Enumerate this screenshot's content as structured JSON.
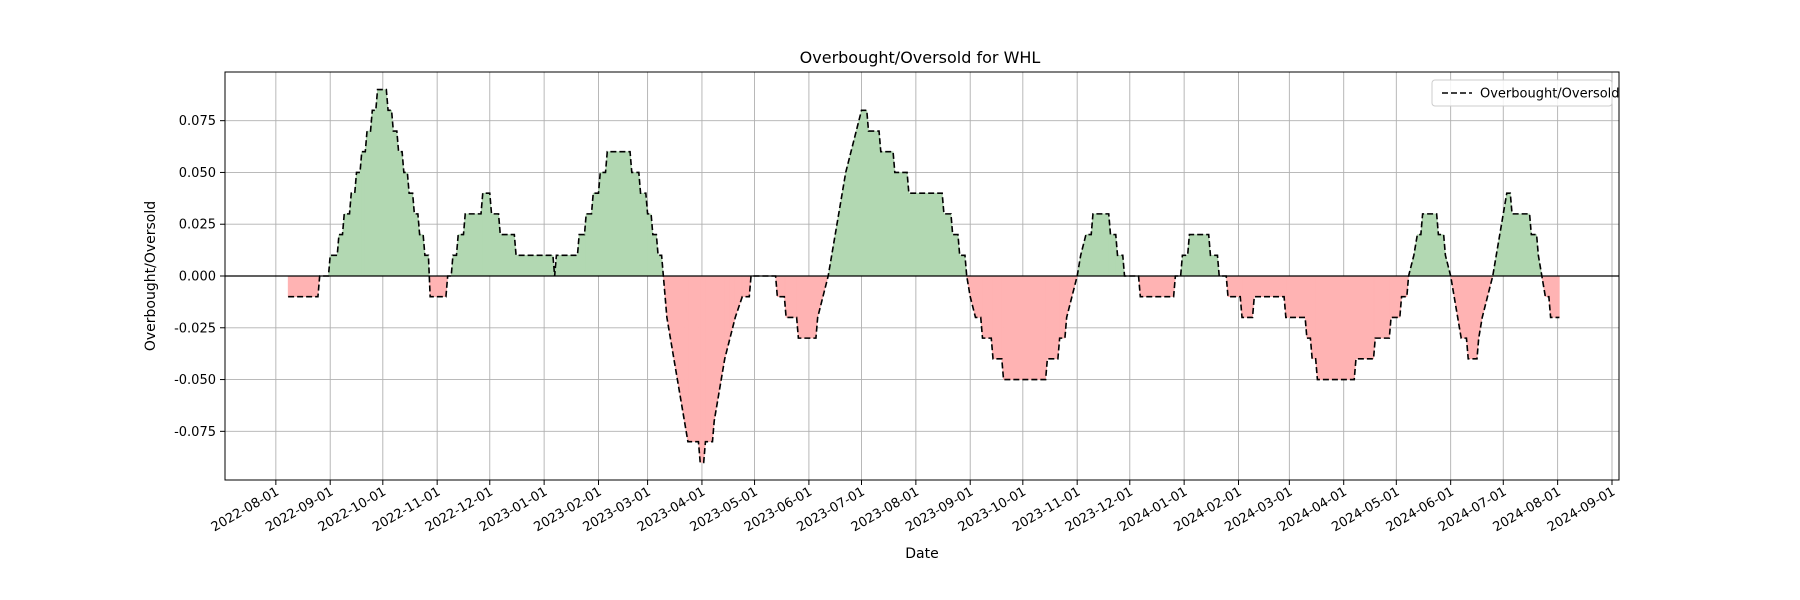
{
  "chart_data": {
    "type": "area",
    "title": "Overbought/Oversold for WHL",
    "xlabel": "Date",
    "ylabel": "Overbought/Oversold",
    "x_ticks": [
      "2022-08-01",
      "2022-09-01",
      "2022-10-01",
      "2022-11-01",
      "2022-12-01",
      "2023-01-01",
      "2023-02-01",
      "2023-03-01",
      "2023-04-01",
      "2023-05-01",
      "2023-06-01",
      "2023-07-01",
      "2023-08-01",
      "2023-09-01",
      "2023-10-01",
      "2023-11-01",
      "2023-12-01",
      "2024-01-01",
      "2024-02-01",
      "2024-03-01",
      "2024-04-01",
      "2024-05-01",
      "2024-06-01",
      "2024-07-01",
      "2024-08-01",
      "2024-09-01"
    ],
    "y_ticks": [
      "0.075",
      "0.050",
      "0.025",
      "0.000",
      "-0.025",
      "-0.050",
      "-0.075"
    ],
    "y_tick_values": [
      0.075,
      0.05,
      0.025,
      0,
      -0.025,
      -0.05,
      -0.075
    ],
    "xlim": [
      "2022-07-03",
      "2024-09-05"
    ],
    "ylim": [
      -0.0985,
      0.0985
    ],
    "grid": true,
    "legend_position": "top-right",
    "positive_color": "#b2d8b2",
    "negative_color": "#ffb3b3",
    "line_color": "#000000",
    "zero_line_color": "#000000",
    "series": [
      {
        "name": "Overbought/Oversold",
        "style": "dashed",
        "points": [
          [
            "2022-08-08",
            -0.01
          ],
          [
            "2022-08-25",
            -0.01
          ],
          [
            "2022-08-26",
            0
          ],
          [
            "2022-08-31",
            0
          ],
          [
            "2022-09-01",
            0.01
          ],
          [
            "2022-09-05",
            0.01
          ],
          [
            "2022-09-06",
            0.02
          ],
          [
            "2022-09-08",
            0.02
          ],
          [
            "2022-09-09",
            0.03
          ],
          [
            "2022-09-12",
            0.03
          ],
          [
            "2022-09-13",
            0.04
          ],
          [
            "2022-09-15",
            0.04
          ],
          [
            "2022-09-16",
            0.05
          ],
          [
            "2022-09-18",
            0.05
          ],
          [
            "2022-09-19",
            0.06
          ],
          [
            "2022-09-21",
            0.06
          ],
          [
            "2022-09-22",
            0.07
          ],
          [
            "2022-09-24",
            0.07
          ],
          [
            "2022-09-25",
            0.08
          ],
          [
            "2022-09-27",
            0.08
          ],
          [
            "2022-09-28",
            0.09
          ],
          [
            "2022-10-03",
            0.09
          ],
          [
            "2022-10-04",
            0.08
          ],
          [
            "2022-10-06",
            0.08
          ],
          [
            "2022-10-07",
            0.07
          ],
          [
            "2022-10-09",
            0.07
          ],
          [
            "2022-10-10",
            0.06
          ],
          [
            "2022-10-12",
            0.06
          ],
          [
            "2022-10-13",
            0.05
          ],
          [
            "2022-10-15",
            0.05
          ],
          [
            "2022-10-16",
            0.04
          ],
          [
            "2022-10-18",
            0.04
          ],
          [
            "2022-10-19",
            0.03
          ],
          [
            "2022-10-21",
            0.03
          ],
          [
            "2022-10-22",
            0.02
          ],
          [
            "2022-10-24",
            0.02
          ],
          [
            "2022-10-25",
            0.01
          ],
          [
            "2022-10-27",
            0.01
          ],
          [
            "2022-10-28",
            -0.01
          ],
          [
            "2022-11-06",
            -0.01
          ],
          [
            "2022-11-07",
            0
          ],
          [
            "2022-11-09",
            0
          ],
          [
            "2022-11-10",
            0.01
          ],
          [
            "2022-11-12",
            0.01
          ],
          [
            "2022-11-13",
            0.02
          ],
          [
            "2022-11-16",
            0.02
          ],
          [
            "2022-11-17",
            0.03
          ],
          [
            "2022-11-26",
            0.03
          ],
          [
            "2022-11-27",
            0.04
          ],
          [
            "2022-12-01",
            0.04
          ],
          [
            "2022-12-02",
            0.03
          ],
          [
            "2022-12-06",
            0.03
          ],
          [
            "2022-12-07",
            0.02
          ],
          [
            "2022-12-15",
            0.02
          ],
          [
            "2022-12-16",
            0.01
          ],
          [
            "2023-01-06",
            0.01
          ],
          [
            "2023-01-07",
            0
          ],
          [
            "2023-01-08",
            0.01
          ],
          [
            "2023-01-20",
            0.01
          ],
          [
            "2023-01-21",
            0.02
          ],
          [
            "2023-01-24",
            0.02
          ],
          [
            "2023-01-25",
            0.03
          ],
          [
            "2023-01-28",
            0.03
          ],
          [
            "2023-01-29",
            0.04
          ],
          [
            "2023-02-01",
            0.04
          ],
          [
            "2023-02-02",
            0.05
          ],
          [
            "2023-02-05",
            0.05
          ],
          [
            "2023-02-06",
            0.06
          ],
          [
            "2023-02-19",
            0.06
          ],
          [
            "2023-02-20",
            0.05
          ],
          [
            "2023-02-24",
            0.05
          ],
          [
            "2023-02-25",
            0.04
          ],
          [
            "2023-02-28",
            0.04
          ],
          [
            "2023-03-01",
            0.03
          ],
          [
            "2023-03-03",
            0.03
          ],
          [
            "2023-03-04",
            0.02
          ],
          [
            "2023-03-06",
            0.02
          ],
          [
            "2023-03-07",
            0.01
          ],
          [
            "2023-03-09",
            0.01
          ],
          [
            "2023-03-10",
            0
          ],
          [
            "2023-03-11",
            -0.01
          ],
          [
            "2023-03-12",
            -0.02
          ],
          [
            "2023-03-14",
            -0.03
          ],
          [
            "2023-03-16",
            -0.04
          ],
          [
            "2023-03-18",
            -0.05
          ],
          [
            "2023-03-20",
            -0.06
          ],
          [
            "2023-03-22",
            -0.07
          ],
          [
            "2023-03-24",
            -0.08
          ],
          [
            "2023-03-30",
            -0.08
          ],
          [
            "2023-03-31",
            -0.09
          ],
          [
            "2023-04-02",
            -0.09
          ],
          [
            "2023-04-03",
            -0.08
          ],
          [
            "2023-04-07",
            -0.08
          ],
          [
            "2023-04-08",
            -0.07
          ],
          [
            "2023-04-10",
            -0.06
          ],
          [
            "2023-04-12",
            -0.05
          ],
          [
            "2023-04-14",
            -0.04
          ],
          [
            "2023-04-17",
            -0.03
          ],
          [
            "2023-04-20",
            -0.02
          ],
          [
            "2023-04-24",
            -0.01
          ],
          [
            "2023-04-28",
            -0.01
          ],
          [
            "2023-04-29",
            0
          ],
          [
            "2023-05-13",
            0
          ],
          [
            "2023-05-14",
            -0.01
          ],
          [
            "2023-05-18",
            -0.01
          ],
          [
            "2023-05-19",
            -0.02
          ],
          [
            "2023-05-25",
            -0.02
          ],
          [
            "2023-05-26",
            -0.03
          ],
          [
            "2023-06-05",
            -0.03
          ],
          [
            "2023-06-06",
            -0.02
          ],
          [
            "2023-06-09",
            -0.01
          ],
          [
            "2023-06-12",
            0
          ],
          [
            "2023-06-14",
            0.01
          ],
          [
            "2023-06-16",
            0.02
          ],
          [
            "2023-06-18",
            0.03
          ],
          [
            "2023-06-20",
            0.04
          ],
          [
            "2023-06-22",
            0.05
          ],
          [
            "2023-06-25",
            0.06
          ],
          [
            "2023-06-28",
            0.07
          ],
          [
            "2023-07-01",
            0.08
          ],
          [
            "2023-07-04",
            0.08
          ],
          [
            "2023-07-05",
            0.07
          ],
          [
            "2023-07-11",
            0.07
          ],
          [
            "2023-07-12",
            0.06
          ],
          [
            "2023-07-19",
            0.06
          ],
          [
            "2023-07-20",
            0.05
          ],
          [
            "2023-07-27",
            0.05
          ],
          [
            "2023-07-28",
            0.04
          ],
          [
            "2023-08-16",
            0.04
          ],
          [
            "2023-08-17",
            0.03
          ],
          [
            "2023-08-21",
            0.03
          ],
          [
            "2023-08-22",
            0.02
          ],
          [
            "2023-08-25",
            0.02
          ],
          [
            "2023-08-26",
            0.01
          ],
          [
            "2023-08-29",
            0.01
          ],
          [
            "2023-08-30",
            0
          ],
          [
            "2023-09-01",
            -0.01
          ],
          [
            "2023-09-04",
            -0.02
          ],
          [
            "2023-09-07",
            -0.02
          ],
          [
            "2023-09-08",
            -0.03
          ],
          [
            "2023-09-13",
            -0.03
          ],
          [
            "2023-09-14",
            -0.04
          ],
          [
            "2023-09-19",
            -0.04
          ],
          [
            "2023-09-20",
            -0.05
          ],
          [
            "2023-10-14",
            -0.05
          ],
          [
            "2023-10-15",
            -0.04
          ],
          [
            "2023-10-21",
            -0.04
          ],
          [
            "2023-10-22",
            -0.03
          ],
          [
            "2023-10-25",
            -0.03
          ],
          [
            "2023-10-26",
            -0.02
          ],
          [
            "2023-10-29",
            -0.01
          ],
          [
            "2023-11-01",
            0
          ],
          [
            "2023-11-03",
            0.01
          ],
          [
            "2023-11-06",
            0.02
          ],
          [
            "2023-11-09",
            0.02
          ],
          [
            "2023-11-10",
            0.03
          ],
          [
            "2023-11-19",
            0.03
          ],
          [
            "2023-11-20",
            0.02
          ],
          [
            "2023-11-23",
            0.02
          ],
          [
            "2023-11-24",
            0.01
          ],
          [
            "2023-11-27",
            0.01
          ],
          [
            "2023-11-28",
            0
          ],
          [
            "2023-12-06",
            0
          ],
          [
            "2023-12-07",
            -0.01
          ],
          [
            "2023-12-26",
            -0.01
          ],
          [
            "2023-12-27",
            0
          ],
          [
            "2023-12-30",
            0
          ],
          [
            "2023-12-31",
            0.01
          ],
          [
            "2024-01-03",
            0.01
          ],
          [
            "2024-01-04",
            0.02
          ],
          [
            "2024-01-15",
            0.02
          ],
          [
            "2024-01-16",
            0.01
          ],
          [
            "2024-01-20",
            0.01
          ],
          [
            "2024-01-21",
            0
          ],
          [
            "2024-01-25",
            0
          ],
          [
            "2024-01-26",
            -0.01
          ],
          [
            "2024-02-02",
            -0.01
          ],
          [
            "2024-02-03",
            -0.02
          ],
          [
            "2024-02-09",
            -0.02
          ],
          [
            "2024-02-10",
            -0.01
          ],
          [
            "2024-02-27",
            -0.01
          ],
          [
            "2024-02-28",
            -0.02
          ],
          [
            "2024-03-10",
            -0.02
          ],
          [
            "2024-03-11",
            -0.03
          ],
          [
            "2024-03-13",
            -0.03
          ],
          [
            "2024-03-14",
            -0.04
          ],
          [
            "2024-03-16",
            -0.04
          ],
          [
            "2024-03-17",
            -0.05
          ],
          [
            "2024-04-07",
            -0.05
          ],
          [
            "2024-04-08",
            -0.04
          ],
          [
            "2024-04-18",
            -0.04
          ],
          [
            "2024-04-19",
            -0.03
          ],
          [
            "2024-04-27",
            -0.03
          ],
          [
            "2024-04-28",
            -0.02
          ],
          [
            "2024-05-03",
            -0.02
          ],
          [
            "2024-05-04",
            -0.01
          ],
          [
            "2024-05-07",
            -0.01
          ],
          [
            "2024-05-08",
            0
          ],
          [
            "2024-05-11",
            0.01
          ],
          [
            "2024-05-13",
            0.02
          ],
          [
            "2024-05-15",
            0.02
          ],
          [
            "2024-05-16",
            0.03
          ],
          [
            "2024-05-24",
            0.03
          ],
          [
            "2024-05-25",
            0.02
          ],
          [
            "2024-05-28",
            0.02
          ],
          [
            "2024-05-29",
            0.01
          ],
          [
            "2024-06-01",
            0
          ],
          [
            "2024-06-03",
            -0.01
          ],
          [
            "2024-06-05",
            -0.02
          ],
          [
            "2024-06-07",
            -0.03
          ],
          [
            "2024-06-10",
            -0.03
          ],
          [
            "2024-06-11",
            -0.04
          ],
          [
            "2024-06-16",
            -0.04
          ],
          [
            "2024-06-17",
            -0.03
          ],
          [
            "2024-06-19",
            -0.02
          ],
          [
            "2024-06-22",
            -0.01
          ],
          [
            "2024-06-25",
            0
          ],
          [
            "2024-06-27",
            0.01
          ],
          [
            "2024-06-29",
            0.02
          ],
          [
            "2024-07-01",
            0.03
          ],
          [
            "2024-07-03",
            0.04
          ],
          [
            "2024-07-05",
            0.04
          ],
          [
            "2024-07-06",
            0.03
          ],
          [
            "2024-07-16",
            0.03
          ],
          [
            "2024-07-17",
            0.02
          ],
          [
            "2024-07-20",
            0.02
          ],
          [
            "2024-07-21",
            0.01
          ],
          [
            "2024-07-23",
            0
          ],
          [
            "2024-07-25",
            -0.01
          ],
          [
            "2024-07-27",
            -0.01
          ],
          [
            "2024-07-28",
            -0.02
          ],
          [
            "2024-08-02",
            -0.02
          ]
        ]
      }
    ]
  }
}
